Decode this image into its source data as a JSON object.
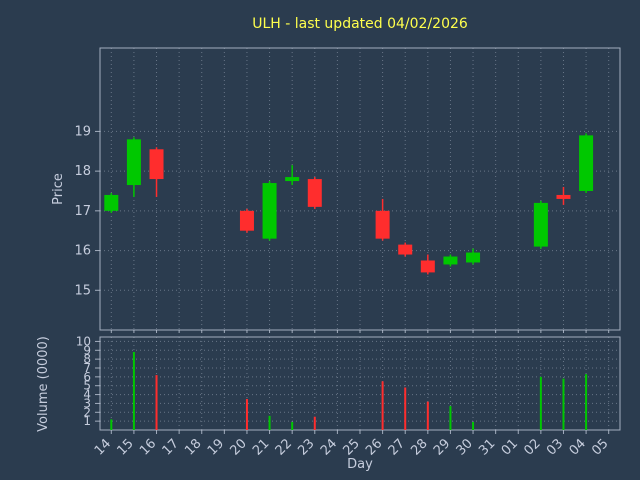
{
  "colors": {
    "background": "#2b3c4f",
    "up": "#00c800",
    "down": "#ff2d2d",
    "grid": "#9aa5b6",
    "tick_text": "#c6cddd",
    "title_text": "#ffff4d"
  },
  "chart_data": {
    "type": "candlestick",
    "title": "ULH - last updated 04/02/2026",
    "xlabel": "Day",
    "price_ylabel": "Price",
    "volume_ylabel": "Volume (0000)",
    "x_categories": [
      "14",
      "15",
      "16",
      "17",
      "18",
      "19",
      "20",
      "21",
      "22",
      "23",
      "24",
      "25",
      "26",
      "27",
      "28",
      "29",
      "30",
      "31",
      "01",
      "02",
      "03",
      "04",
      "05"
    ],
    "price_ticks": [
      15,
      16,
      17,
      18,
      19
    ],
    "price_range": [
      14.0,
      21.1
    ],
    "volume_ticks": [
      1,
      2,
      3,
      4,
      5,
      6,
      7,
      8,
      9,
      10
    ],
    "volume_range": [
      0,
      10.5
    ],
    "legend": "none",
    "grid": "dotted",
    "candles": [
      {
        "day": "14",
        "open": 17.0,
        "close": 17.4,
        "high": 17.45,
        "low": 16.95
      },
      {
        "day": "15",
        "open": 17.65,
        "close": 18.8,
        "high": 18.85,
        "low": 17.35
      },
      {
        "day": "16",
        "open": 18.55,
        "close": 17.8,
        "high": 18.6,
        "low": 17.35
      },
      {
        "day": "20",
        "open": 17.0,
        "close": 16.5,
        "high": 17.05,
        "low": 16.45
      },
      {
        "day": "21",
        "open": 16.3,
        "close": 17.7,
        "high": 17.75,
        "low": 16.25
      },
      {
        "day": "22",
        "open": 17.75,
        "close": 17.85,
        "high": 18.15,
        "low": 17.65
      },
      {
        "day": "23",
        "open": 17.8,
        "close": 17.1,
        "high": 17.85,
        "low": 17.05
      },
      {
        "day": "26",
        "open": 17.0,
        "close": 16.3,
        "high": 17.3,
        "low": 16.25
      },
      {
        "day": "27",
        "open": 16.15,
        "close": 15.9,
        "high": 16.2,
        "low": 15.85
      },
      {
        "day": "28",
        "open": 15.75,
        "close": 15.45,
        "high": 15.9,
        "low": 15.4
      },
      {
        "day": "29",
        "open": 15.65,
        "close": 15.85,
        "high": 15.9,
        "low": 15.6
      },
      {
        "day": "30",
        "open": 15.7,
        "close": 15.95,
        "high": 16.05,
        "low": 15.65
      },
      {
        "day": "02",
        "open": 16.1,
        "close": 17.2,
        "high": 17.25,
        "low": 16.05
      },
      {
        "day": "03",
        "open": 17.4,
        "close": 17.3,
        "high": 17.6,
        "low": 17.15
      },
      {
        "day": "04",
        "open": 17.5,
        "close": 18.9,
        "high": 18.95,
        "low": 17.45
      }
    ],
    "volumes": [
      {
        "day": "14",
        "value": 1.2,
        "dir": "up"
      },
      {
        "day": "15",
        "value": 8.8,
        "dir": "up"
      },
      {
        "day": "16",
        "value": 6.2,
        "dir": "down"
      },
      {
        "day": "20",
        "value": 3.5,
        "dir": "down"
      },
      {
        "day": "21",
        "value": 1.6,
        "dir": "up"
      },
      {
        "day": "22",
        "value": 0.9,
        "dir": "up"
      },
      {
        "day": "23",
        "value": 1.5,
        "dir": "down"
      },
      {
        "day": "26",
        "value": 5.5,
        "dir": "down"
      },
      {
        "day": "27",
        "value": 4.8,
        "dir": "down"
      },
      {
        "day": "28",
        "value": 3.2,
        "dir": "down"
      },
      {
        "day": "29",
        "value": 2.7,
        "dir": "up"
      },
      {
        "day": "30",
        "value": 0.9,
        "dir": "up"
      },
      {
        "day": "02",
        "value": 6.0,
        "dir": "up"
      },
      {
        "day": "03",
        "value": 5.8,
        "dir": "up"
      },
      {
        "day": "04",
        "value": 6.3,
        "dir": "up"
      }
    ]
  }
}
